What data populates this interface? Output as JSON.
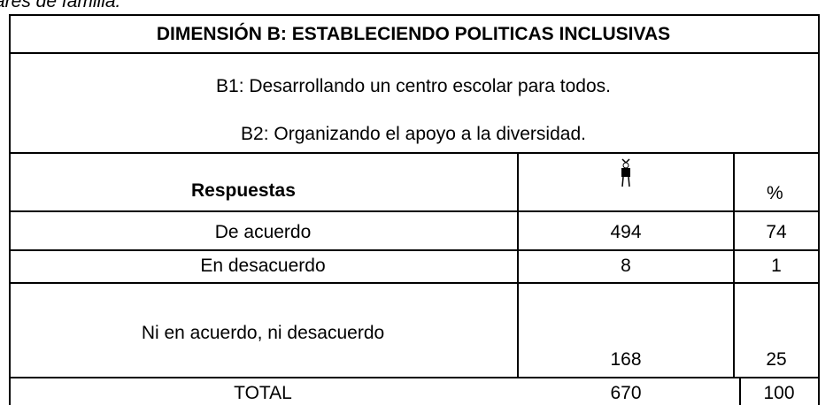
{
  "caption": "ares de familia.",
  "table": {
    "title": "DIMENSIÓN B: ESTABLECIENDO POLITICAS INCLUSIVAS",
    "subtitles": [
      "B1: Desarrollando un centro escolar para todos.",
      "B2: Organizando el apoyo a la diversidad."
    ],
    "header": [
      "Respuestas",
      "%"
    ],
    "rows": [
      [
        "De acuerdo",
        "494",
        "74"
      ],
      [
        "En desacuerdo",
        "8",
        "1"
      ],
      [
        "Ni en acuerdo, ni desacuerdo",
        "168",
        "25"
      ],
      [
        "TOTAL",
        "670",
        "100"
      ]
    ]
  }
}
